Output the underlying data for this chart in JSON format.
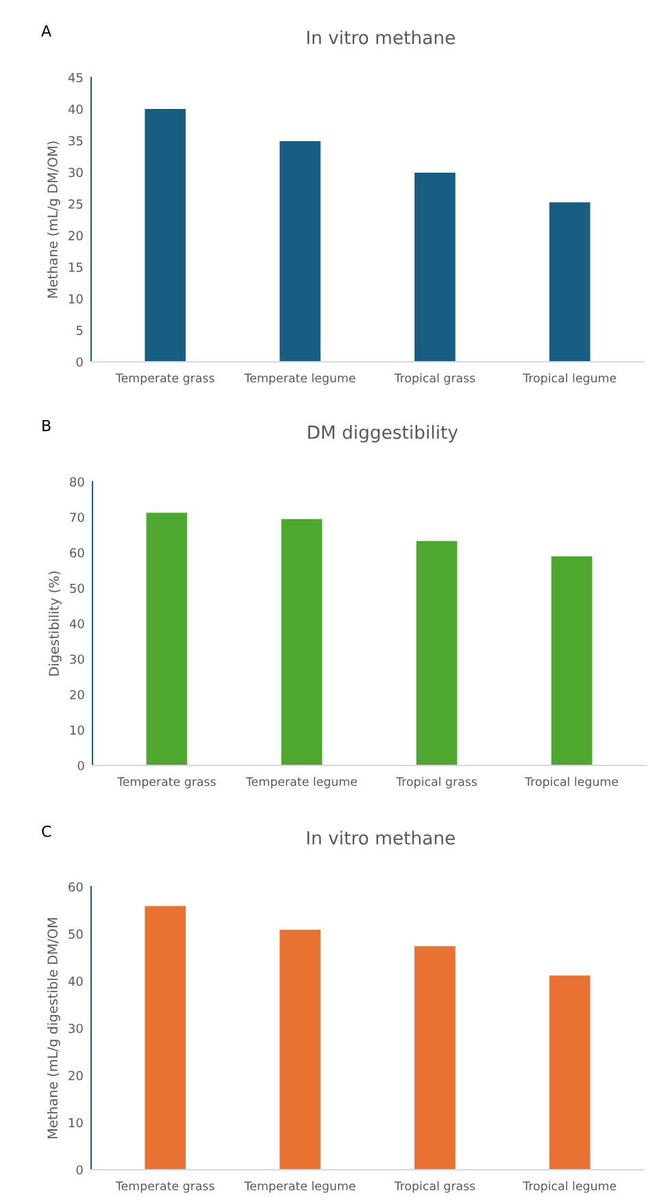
{
  "chart_data": [
    {
      "type": "bar",
      "title": "In vitro methane",
      "ylabel": "Methane (mL/g DM/OM)",
      "annotations": [
        "A"
      ],
      "categories": [
        "Temperate grass",
        "Temperate legume",
        "Tropical grass",
        "Tropical legume"
      ],
      "values": [
        40.1,
        35,
        30,
        25.3
      ],
      "color": "#175e82",
      "ylim": [
        0,
        45
      ],
      "yticks": [
        0,
        5,
        10,
        15,
        20,
        25,
        30,
        35,
        40,
        45
      ],
      "grid": false
    },
    {
      "type": "bar",
      "title": "DM diggestibility",
      "ylabel": "Digestibility (%)",
      "annotations": [
        "B"
      ],
      "categories": [
        "Temperate grass",
        "Temperate legume",
        "Tropical grass",
        "Tropical legume"
      ],
      "values": [
        71.4,
        69.6,
        63.4,
        59.1
      ],
      "color": "#4ea72e",
      "ylim": [
        0,
        80
      ],
      "yticks": [
        0,
        10,
        20,
        30,
        40,
        50,
        60,
        70,
        80
      ],
      "grid": false
    },
    {
      "type": "bar",
      "title": "In vitro methane",
      "ylabel": "Methane (mL/g digestible DM/OM",
      "annotations": [
        "C"
      ],
      "categories": [
        "Temperate grass",
        "Temperate legume",
        "Tropical grass",
        "Tropical legume"
      ],
      "values": [
        56,
        51,
        47.5,
        41.3
      ],
      "color": "#e97132",
      "ylim": [
        0,
        60
      ],
      "yticks": [
        0,
        10,
        20,
        30,
        40,
        50,
        60
      ],
      "grid": false
    }
  ]
}
